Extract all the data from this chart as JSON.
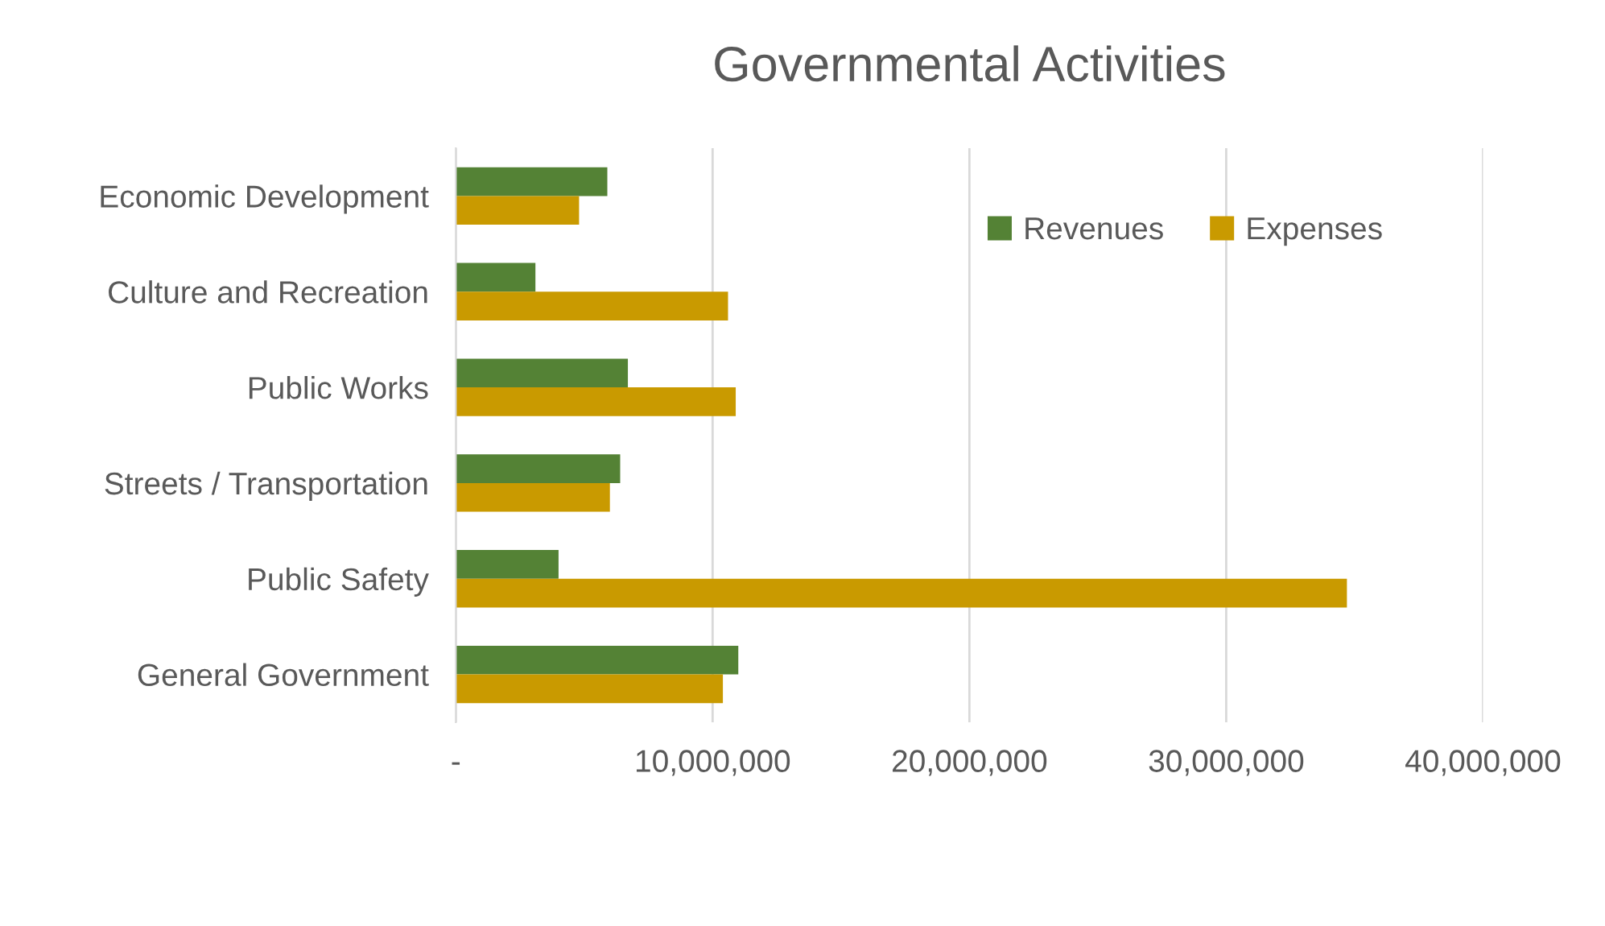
{
  "chart_data": {
    "type": "bar",
    "orientation": "horizontal",
    "title": "Governmental Activities",
    "categories": [
      "Economic Development",
      "Culture and Recreation",
      "Public Works",
      "Streets / Transportation",
      "Public Safety",
      "General Government"
    ],
    "series": [
      {
        "name": "Revenues",
        "color": "#548235",
        "values": [
          5900000,
          3100000,
          6700000,
          6400000,
          4000000,
          11000000
        ]
      },
      {
        "name": "Expenses",
        "color": "#c99a00",
        "values": [
          4800000,
          10600000,
          10900000,
          6000000,
          34700000,
          10400000
        ]
      }
    ],
    "xlim": [
      0,
      40000000
    ],
    "xticks": [
      {
        "value": 0,
        "label": "-"
      },
      {
        "value": 10000000,
        "label": "10,000,000"
      },
      {
        "value": 20000000,
        "label": "20,000,000"
      },
      {
        "value": 30000000,
        "label": "30,000,000"
      },
      {
        "value": 40000000,
        "label": "40,000,000"
      }
    ],
    "grid": "x",
    "legend": "top right"
  }
}
